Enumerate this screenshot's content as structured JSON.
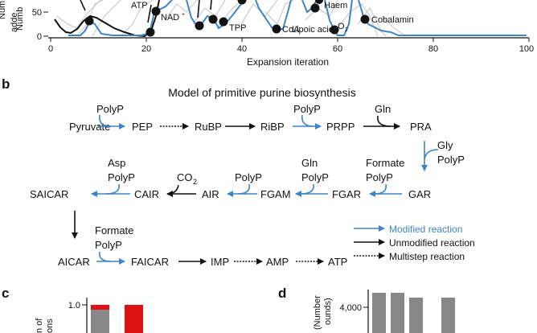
{
  "panel_a": {
    "ylabel_partial": [
      "Numb",
      "adde"
    ],
    "yticks": [
      "50",
      "0"
    ],
    "xticks": [
      "0",
      "20",
      "40",
      "60",
      "80",
      "100"
    ],
    "xlabel": "Expansion iteration",
    "annotations": {
      "atp": "ATP",
      "nad": "NAD",
      "nad_sup": "+",
      "tpp": "TPP",
      "coa": "CoA",
      "lipoic": "Lipoic acid",
      "o2": "O",
      "o2_sub": "2",
      "haem": "Haem",
      "cobalamin": "Cobalamin"
    },
    "colors": {
      "modified": "#3d85c6",
      "unmodified": "#000000",
      "background_runs": "#cccccc"
    }
  },
  "panel_b": {
    "label": "b",
    "title": "Model of primitive purine biosynthesis",
    "row1": {
      "pyruvate": "Pyruvate",
      "polyp1": "PolyP",
      "pep": "PEP",
      "rubp": "RuBP",
      "ribp": "RiBP",
      "polyp2": "PolyP",
      "prpp": "PRPP",
      "gln": "Gln",
      "pra": "PRA"
    },
    "side": {
      "gly": "Gly",
      "polyp": "PolyP"
    },
    "row2": {
      "saicar": "SAICAR",
      "asp": "Asp",
      "polyp_a": "PolyP",
      "cair": "CAIR",
      "co2": "CO",
      "co2_sub": "2",
      "air": "AIR",
      "polyp_b": "PolyP",
      "fgam": "FGAM",
      "gln": "Gln",
      "polyp_c": "PolyP",
      "fgar": "FGAR",
      "formate": "Formate",
      "polyp_d": "PolyP",
      "gar": "GAR"
    },
    "row3": {
      "aicar": "AICAR",
      "formate": "Formate",
      "polyp": "PolyP",
      "faicar": "FAICAR",
      "imp": "IMP",
      "amp": "AMP",
      "atp": "ATP"
    },
    "legend": {
      "modified": "Modified reaction",
      "unmodified": "Unmodified reaction",
      "multistep": "Multistep reaction"
    }
  },
  "panel_c": {
    "label": "c",
    "ylabel_partial": [
      "n of",
      "ons"
    ],
    "ytick": "1.0",
    "bars": [
      {
        "fraction_grey": 0.93,
        "fraction_red": 0.07
      },
      {
        "fraction_grey": 0.0,
        "fraction_red": 1.0
      }
    ]
  },
  "panel_d": {
    "label": "d",
    "ylabel_partial": [
      "(Number",
      "ounds)"
    ],
    "ytick": "4,000",
    "bars": [
      4450,
      4450,
      4300,
      4300
    ]
  }
}
